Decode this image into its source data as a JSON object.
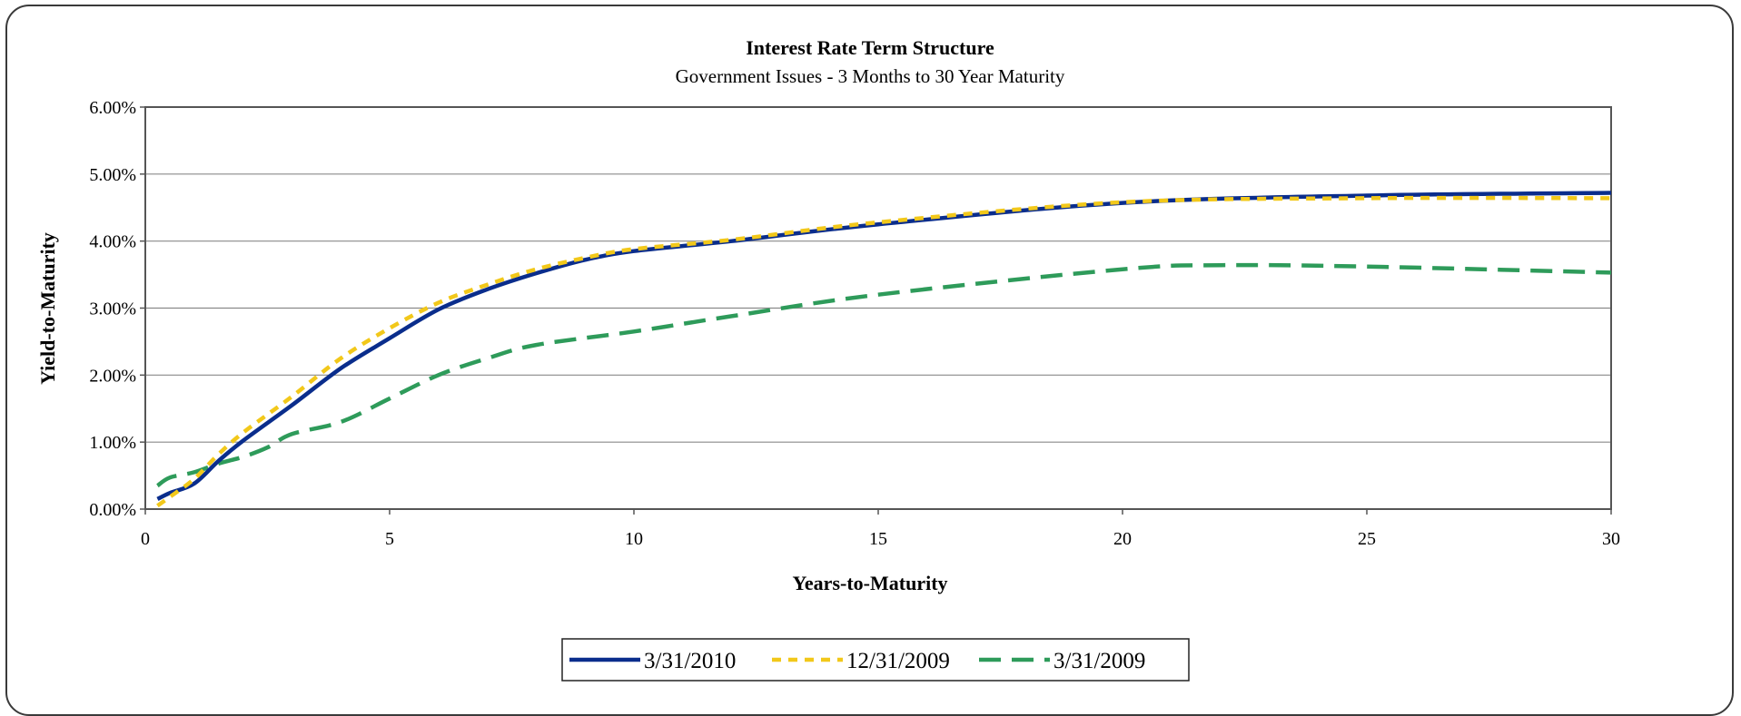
{
  "chart_data": {
    "type": "line",
    "title": "Interest Rate Term Structure",
    "subtitle": "Government Issues - 3 Months to 30 Year Maturity",
    "xlabel": "Years-to-Maturity",
    "ylabel": "Yield-to-Maturity",
    "xlim": [
      0,
      30
    ],
    "ylim": [
      0,
      6
    ],
    "x_ticks": [
      0,
      5,
      10,
      15,
      20,
      25,
      30
    ],
    "x_tick_labels": [
      "0",
      "5",
      "10",
      "15",
      "20",
      "25",
      "30"
    ],
    "y_ticks": [
      0,
      1,
      2,
      3,
      4,
      5,
      6
    ],
    "y_tick_labels": [
      "0.00%",
      "1.00%",
      "2.00%",
      "3.00%",
      "4.00%",
      "5.00%",
      "6.00%"
    ],
    "grid": "horizontal",
    "legend_position": "bottom",
    "series": [
      {
        "name": "3/31/2010",
        "color": "#0a2d8c",
        "dash": "solid",
        "points": [
          [
            0.25,
            0.15
          ],
          [
            0.5,
            0.24
          ],
          [
            1,
            0.38
          ],
          [
            1.5,
            0.72
          ],
          [
            2,
            1.02
          ],
          [
            3,
            1.55
          ],
          [
            4,
            2.1
          ],
          [
            5,
            2.55
          ],
          [
            6,
            2.98
          ],
          [
            7,
            3.28
          ],
          [
            8,
            3.52
          ],
          [
            9,
            3.72
          ],
          [
            10,
            3.85
          ],
          [
            12,
            4.0
          ],
          [
            15,
            4.25
          ],
          [
            20,
            4.57
          ],
          [
            25,
            4.68
          ],
          [
            30,
            4.72
          ]
        ]
      },
      {
        "name": "12/31/2009",
        "color": "#f2c81a",
        "dash": "short",
        "points": [
          [
            0.25,
            0.05
          ],
          [
            0.5,
            0.18
          ],
          [
            1,
            0.45
          ],
          [
            1.5,
            0.82
          ],
          [
            2,
            1.14
          ],
          [
            3,
            1.68
          ],
          [
            4,
            2.25
          ],
          [
            5,
            2.7
          ],
          [
            6,
            3.08
          ],
          [
            7,
            3.35
          ],
          [
            8,
            3.58
          ],
          [
            9,
            3.75
          ],
          [
            10,
            3.88
          ],
          [
            12,
            4.02
          ],
          [
            15,
            4.28
          ],
          [
            20,
            4.58
          ],
          [
            25,
            4.64
          ],
          [
            30,
            4.64
          ]
        ]
      },
      {
        "name": "3/31/2009",
        "color": "#2e9b5a",
        "dash": "long",
        "points": [
          [
            0.25,
            0.35
          ],
          [
            0.5,
            0.47
          ],
          [
            1,
            0.55
          ],
          [
            1.5,
            0.68
          ],
          [
            2,
            0.78
          ],
          [
            2.5,
            0.92
          ],
          [
            3,
            1.12
          ],
          [
            4,
            1.3
          ],
          [
            5,
            1.65
          ],
          [
            6,
            2.0
          ],
          [
            7,
            2.25
          ],
          [
            8,
            2.45
          ],
          [
            10,
            2.65
          ],
          [
            12,
            2.88
          ],
          [
            15,
            3.2
          ],
          [
            20,
            3.58
          ],
          [
            22,
            3.64
          ],
          [
            25,
            3.62
          ],
          [
            30,
            3.53
          ]
        ]
      }
    ]
  }
}
